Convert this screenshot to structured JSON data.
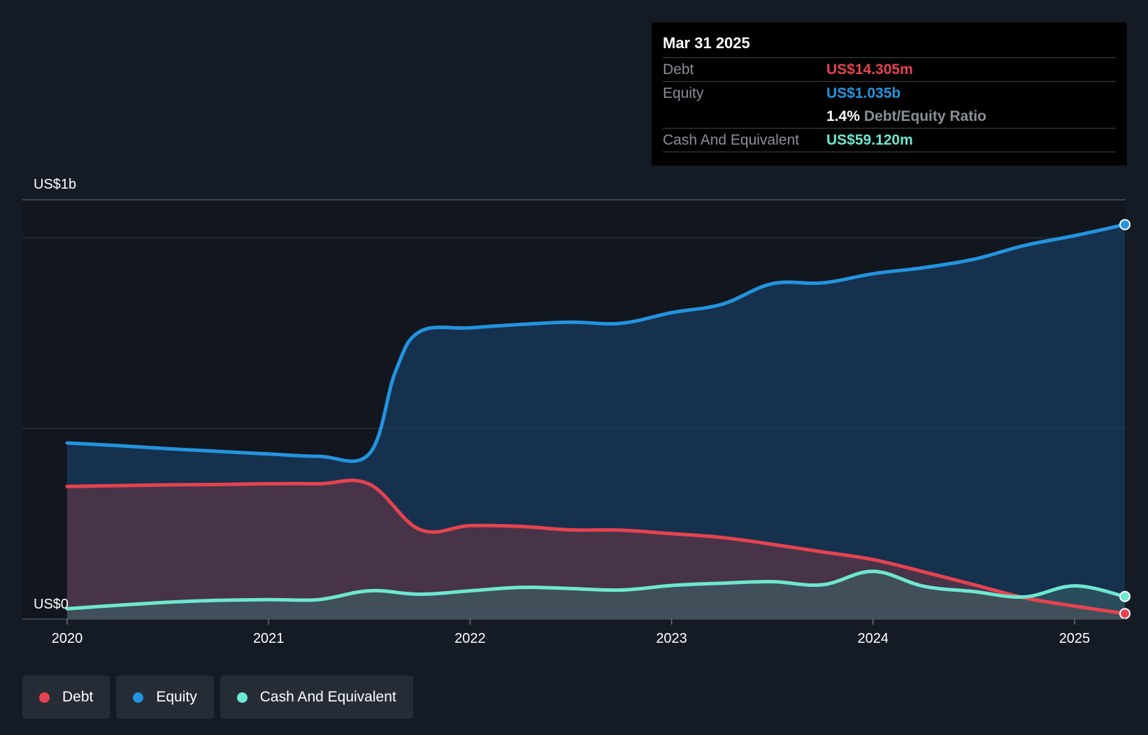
{
  "colors": {
    "debt": "#e5434f",
    "equity": "#2394df",
    "cash": "#6ee7d0",
    "background": "#151b24",
    "plot_background": "#12161e"
  },
  "tooltip": {
    "date": "Mar 31 2025",
    "debt_label": "Debt",
    "debt_value": "US$14.305m",
    "equity_label": "Equity",
    "equity_value": "US$1.035b",
    "ratio_value": "1.4%",
    "ratio_label": "Debt/Equity Ratio",
    "cash_label": "Cash And Equivalent",
    "cash_value": "US$59.120m"
  },
  "legend": {
    "debt": "Debt",
    "equity": "Equity",
    "cash": "Cash And Equivalent"
  },
  "chart_data": {
    "type": "area",
    "title": "",
    "xlabel": "",
    "ylabel": "",
    "ylim": [
      0,
      1100
    ],
    "y_unit": "US$m",
    "y_tick_labels": [
      {
        "value": 1100,
        "label": "US$1b"
      },
      {
        "value": 0,
        "label": "US$0"
      }
    ],
    "gridlines": [
      500,
      1000
    ],
    "xlim": [
      2020.0,
      2025.25
    ],
    "x_ticks": [
      2020,
      2021,
      2022,
      2023,
      2024,
      2025
    ],
    "x_tick_labels": [
      "2020",
      "2021",
      "2022",
      "2023",
      "2024",
      "2025"
    ],
    "series": [
      {
        "name": "Equity",
        "color": "#2394df",
        "points": [
          [
            2020.0,
            462
          ],
          [
            2020.25,
            455
          ],
          [
            2020.5,
            447
          ],
          [
            2020.75,
            440
          ],
          [
            2021.0,
            433
          ],
          [
            2021.25,
            427
          ],
          [
            2021.5,
            434
          ],
          [
            2021.63,
            650
          ],
          [
            2021.75,
            754
          ],
          [
            2022.0,
            764
          ],
          [
            2022.25,
            773
          ],
          [
            2022.5,
            779
          ],
          [
            2022.75,
            776
          ],
          [
            2023.0,
            804
          ],
          [
            2023.25,
            826
          ],
          [
            2023.5,
            880
          ],
          [
            2023.75,
            882
          ],
          [
            2024.0,
            906
          ],
          [
            2024.25,
            922
          ],
          [
            2024.5,
            944
          ],
          [
            2024.75,
            980
          ],
          [
            2025.0,
            1006
          ],
          [
            2025.25,
            1035
          ]
        ]
      },
      {
        "name": "Debt",
        "color": "#e5434f",
        "points": [
          [
            2020.0,
            348
          ],
          [
            2020.25,
            350
          ],
          [
            2020.5,
            352
          ],
          [
            2020.75,
            353
          ],
          [
            2021.0,
            355
          ],
          [
            2021.25,
            355
          ],
          [
            2021.5,
            354
          ],
          [
            2021.75,
            235
          ],
          [
            2022.0,
            245
          ],
          [
            2022.25,
            243
          ],
          [
            2022.5,
            234
          ],
          [
            2022.75,
            233
          ],
          [
            2023.0,
            224
          ],
          [
            2023.25,
            214
          ],
          [
            2023.5,
            196
          ],
          [
            2023.75,
            176
          ],
          [
            2024.0,
            156
          ],
          [
            2024.25,
            124
          ],
          [
            2024.5,
            90
          ],
          [
            2024.75,
            56
          ],
          [
            2025.0,
            34
          ],
          [
            2025.25,
            14.305
          ]
        ]
      },
      {
        "name": "Cash And Equivalent",
        "color": "#6ee7d0",
        "points": [
          [
            2020.0,
            27
          ],
          [
            2020.25,
            36
          ],
          [
            2020.5,
            44
          ],
          [
            2020.75,
            49
          ],
          [
            2021.0,
            51
          ],
          [
            2021.25,
            51
          ],
          [
            2021.5,
            74
          ],
          [
            2021.75,
            65
          ],
          [
            2022.0,
            74
          ],
          [
            2022.25,
            83
          ],
          [
            2022.5,
            80
          ],
          [
            2022.75,
            76
          ],
          [
            2023.0,
            88
          ],
          [
            2023.25,
            94
          ],
          [
            2023.5,
            98
          ],
          [
            2023.75,
            90
          ],
          [
            2024.0,
            125
          ],
          [
            2024.25,
            86
          ],
          [
            2024.5,
            72
          ],
          [
            2024.75,
            58
          ],
          [
            2025.0,
            87
          ],
          [
            2025.25,
            59.12
          ]
        ]
      }
    ],
    "legend_position": "bottom-left"
  }
}
